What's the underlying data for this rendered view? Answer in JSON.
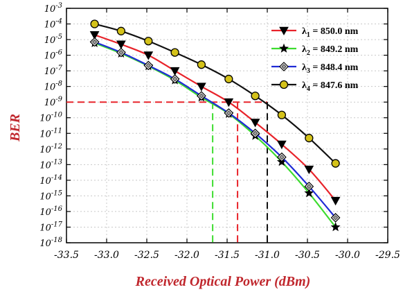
{
  "chart_data": {
    "type": "line",
    "xlabel": "Received Optical Power (dBm)",
    "ylabel": "BER",
    "xlim": [
      -33.5,
      -29.5
    ],
    "ylim_log10": [
      -18,
      -3
    ],
    "y_scale": "log",
    "x_ticks": [
      "-33.5",
      "-33.0",
      "-32.5",
      "-32.0",
      "-31.5",
      "-31.0",
      "-30.5",
      "-30.0",
      "-29.5"
    ],
    "y_ticks": [
      -18,
      -17,
      -16,
      -15,
      -14,
      -13,
      -12,
      -11,
      -10,
      -9,
      -8,
      -7,
      -6,
      -5,
      -4,
      -3
    ],
    "grid": true,
    "legend_position": "top-right",
    "series": [
      {
        "name": "λ1 = 850.0 nm",
        "color": "#e8232a",
        "marker": "triangle-down",
        "marker_fill": "#000000",
        "x": [
          -33.15,
          -32.82,
          -32.48,
          -32.15,
          -31.82,
          -31.48,
          -31.15,
          -30.82,
          -30.48,
          -30.15
        ],
        "y": [
          2e-05,
          5e-06,
          1e-06,
          1e-07,
          1e-08,
          1e-09,
          5e-11,
          2e-12,
          5e-14,
          5e-16
        ]
      },
      {
        "name": "λ2 = 849.2 nm",
        "color": "#3ddc2f",
        "marker": "star",
        "marker_fill": "#000000",
        "x": [
          -33.15,
          -32.82,
          -32.48,
          -32.15,
          -31.82,
          -31.48,
          -31.15,
          -30.82,
          -30.48,
          -30.15
        ],
        "y": [
          6e-06,
          1.3e-06,
          2e-07,
          2.5e-08,
          2e-09,
          1.8e-10,
          7e-12,
          1.5e-13,
          1.5e-15,
          1e-17
        ]
      },
      {
        "name": "λ3 = 848.4 nm",
        "color": "#1f2bd6",
        "marker": "diamond",
        "marker_fill": "#9a9a9a",
        "x": [
          -33.15,
          -32.82,
          -32.48,
          -32.15,
          -31.82,
          -31.48,
          -31.15,
          -30.82,
          -30.48,
          -30.15
        ],
        "y": [
          7e-06,
          1.5e-06,
          2.2e-07,
          3e-08,
          2.5e-09,
          2e-10,
          1e-11,
          3e-13,
          4e-15,
          4e-17
        ]
      },
      {
        "name": "λ4 = 847.6 nm",
        "color": "#111111",
        "marker": "circle",
        "marker_fill": "#d4c21a",
        "x": [
          -33.15,
          -32.82,
          -32.48,
          -32.15,
          -31.82,
          -31.48,
          -31.15,
          -30.82,
          -30.48,
          -30.15
        ],
        "y": [
          0.0001,
          3.5e-05,
          8e-06,
          1.5e-06,
          2.5e-07,
          3e-08,
          2.5e-09,
          1.5e-10,
          5e-12,
          1.2e-13
        ]
      }
    ],
    "reference_lines": {
      "ber_threshold": 1e-09,
      "threshold_color": "#e8232a",
      "drop_lines": [
        {
          "x": -31.68,
          "color": "#3ddc2f"
        },
        {
          "x": -31.37,
          "color": "#e8232a"
        },
        {
          "x": -31.0,
          "color": "#111111"
        }
      ]
    }
  }
}
